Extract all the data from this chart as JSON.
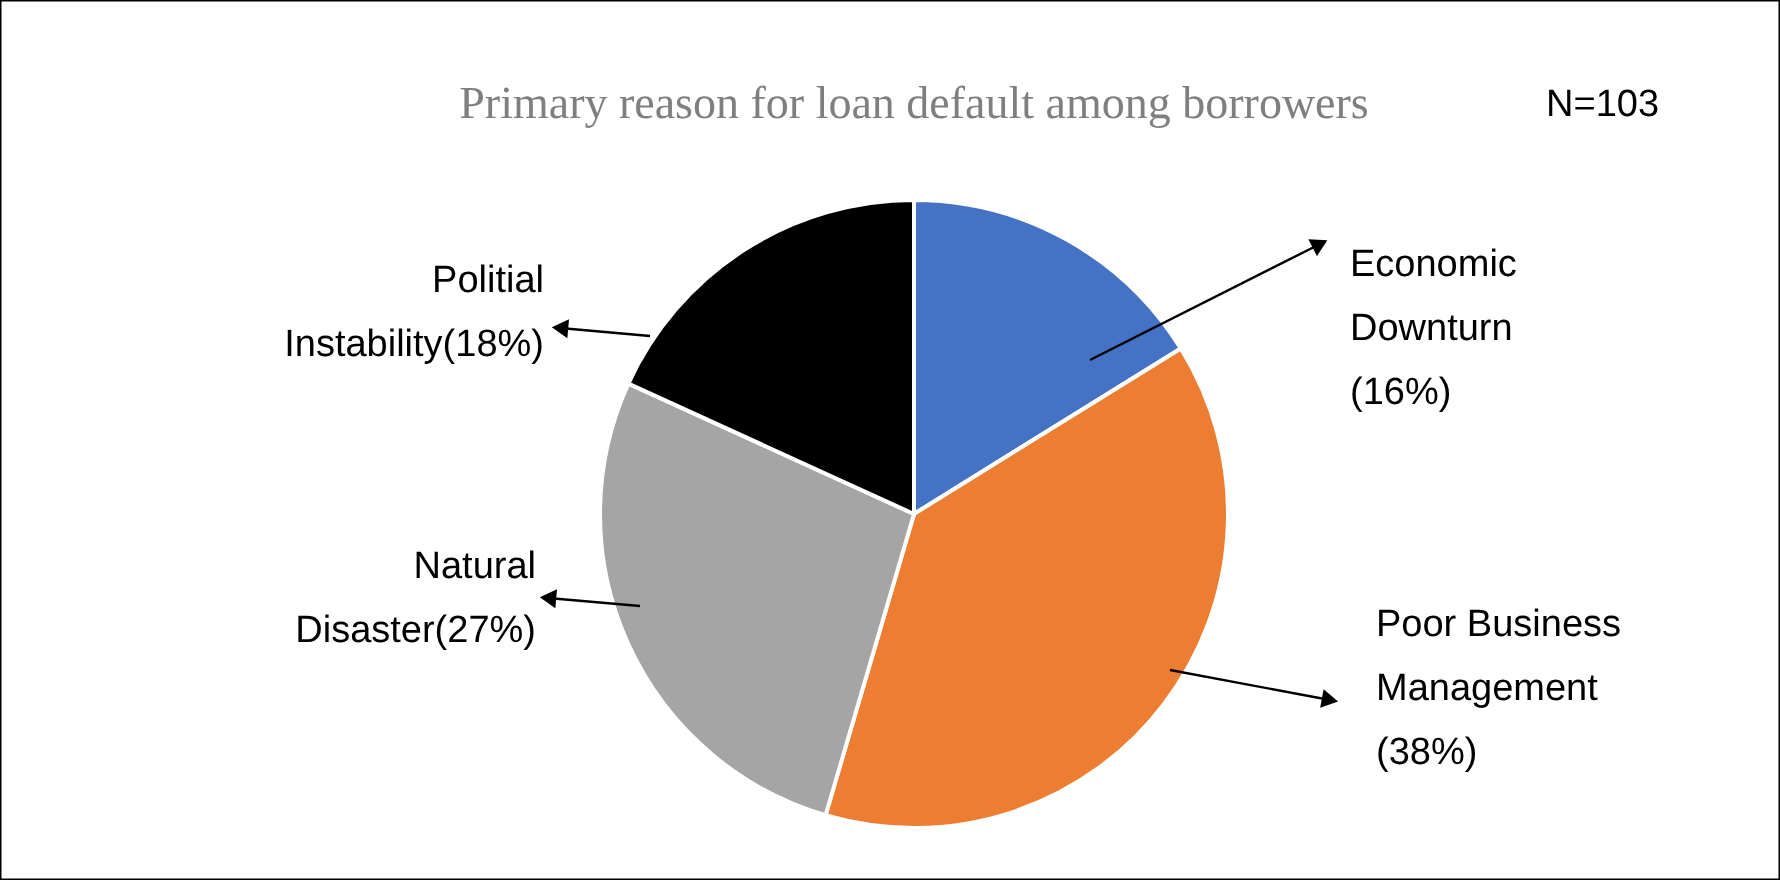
{
  "chart_data": {
    "type": "pie",
    "title": "Primary reason for loan default among borrowers",
    "annotations": [
      "N=103"
    ],
    "categories": [
      "Economic Downturn",
      "Poor Business Management",
      "Natural Disaster",
      "Politial Instability"
    ],
    "values": [
      16,
      38,
      27,
      18
    ],
    "value_labels": [
      "(16%)",
      "(38%)",
      "(27%)",
      "(18%)"
    ],
    "colors": [
      "#4472c4",
      "#ed7d31",
      "#a5a5a5",
      "#000000"
    ]
  }
}
